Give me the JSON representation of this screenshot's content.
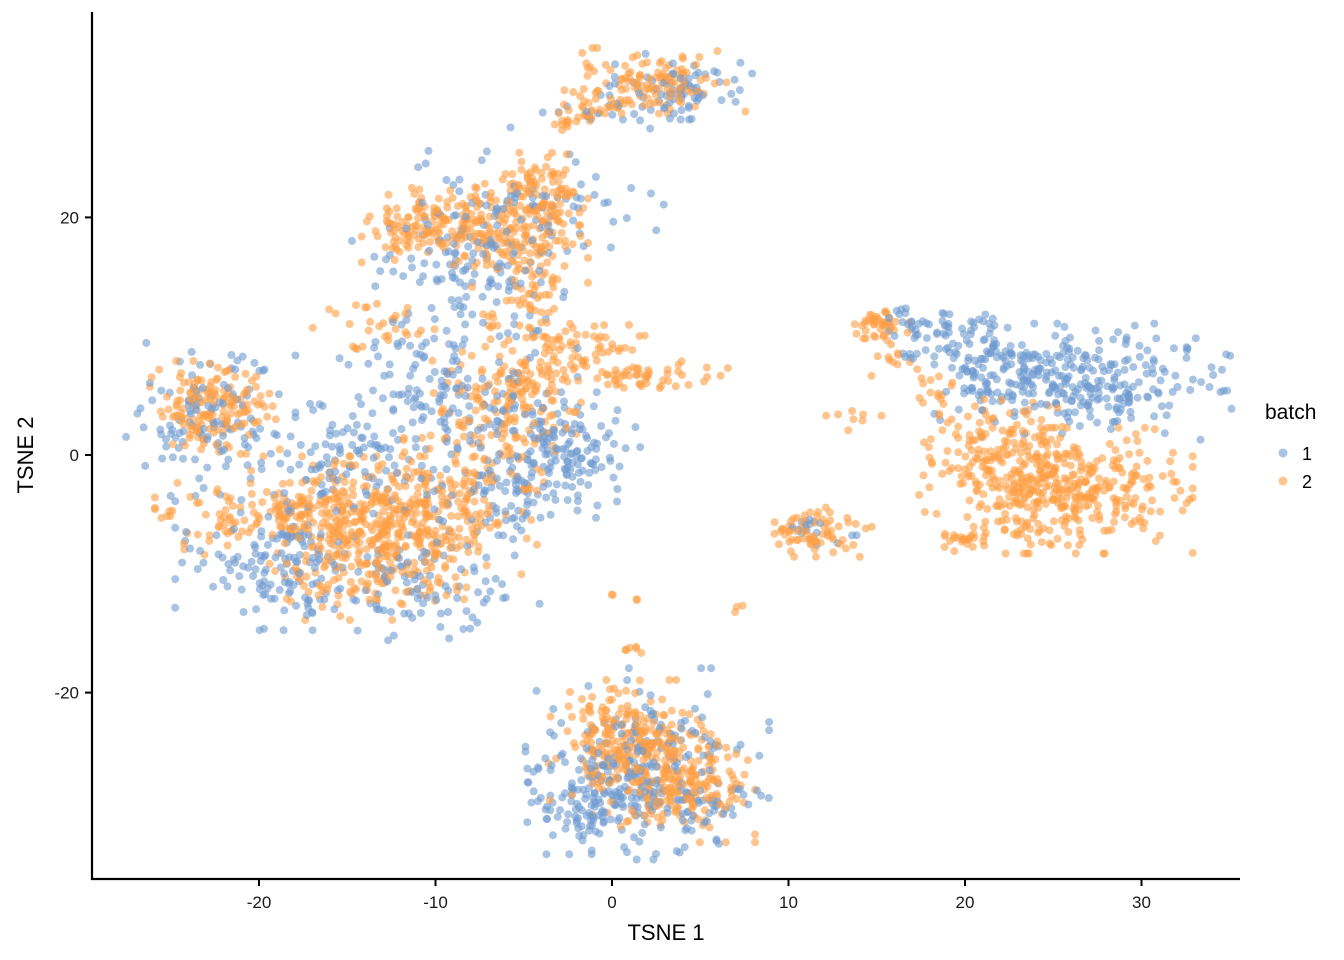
{
  "chart_data": {
    "type": "scatter",
    "title": "",
    "xlabel": "TSNE 1",
    "ylabel": "TSNE 2",
    "xlim": [
      -29,
      36
    ],
    "ylim": [
      -35,
      37
    ],
    "x_ticks": [
      -20,
      -10,
      0,
      10,
      20,
      30
    ],
    "x_tick_labels": [
      "-20",
      "-10",
      "0",
      "10",
      "20",
      "30"
    ],
    "y_ticks": [
      -20,
      0,
      20
    ],
    "y_tick_labels": [
      "-20",
      "0",
      "20"
    ],
    "grid": false,
    "legend": {
      "title": "batch",
      "position": "right",
      "entries": [
        {
          "label": "1",
          "color": "#6F9BD1"
        },
        {
          "label": "2",
          "color": "#FF9F45"
        }
      ]
    },
    "point_alpha": 0.6,
    "point_radius_px": 4,
    "series": [
      {
        "name": "1",
        "color": "#6F9BD1",
        "clusters": [
          {
            "cx": -23,
            "cy": 3,
            "sx": 2.2,
            "sy": 2.8,
            "n": 110
          },
          {
            "cx": -19,
            "cy": -9,
            "sx": 2.5,
            "sy": 2.5,
            "n": 140
          },
          {
            "cx": -16,
            "cy": -1,
            "sx": 2.5,
            "sy": 2.5,
            "n": 90
          },
          {
            "cx": -11,
            "cy": -11,
            "sx": 3.0,
            "sy": 2.0,
            "n": 90
          },
          {
            "cx": -10,
            "cy": 5,
            "sx": 3.5,
            "sy": 3.5,
            "n": 160
          },
          {
            "cx": -8,
            "cy": 15,
            "sx": 3.0,
            "sy": 2.5,
            "n": 110
          },
          {
            "cx": -5,
            "cy": 21,
            "sx": 3.5,
            "sy": 2.0,
            "n": 80
          },
          {
            "cx": -3,
            "cy": 0,
            "sx": 2.0,
            "sy": 2.3,
            "n": 150
          },
          {
            "cx": -6,
            "cy": -4,
            "sx": 2.5,
            "sy": 2.0,
            "n": 60
          },
          {
            "cx": 4,
            "cy": 31,
            "sx": 1.8,
            "sy": 1.2,
            "n": 70
          },
          {
            "cx": 0,
            "cy": 29,
            "sx": 2.5,
            "sy": 1.0,
            "n": 20
          },
          {
            "cx": 19,
            "cy": 10,
            "sx": 1.8,
            "sy": 1.2,
            "n": 80
          },
          {
            "cx": 27,
            "cy": 6,
            "sx": 3.8,
            "sy": 2.2,
            "n": 260
          },
          {
            "cx": 23,
            "cy": 7,
            "sx": 2.0,
            "sy": 1.5,
            "n": 80
          },
          {
            "cx": 11.5,
            "cy": -6.5,
            "sx": 1.5,
            "sy": 0.8,
            "n": 15
          },
          {
            "cx": -1,
            "cy": -29,
            "sx": 1.8,
            "sy": 2.0,
            "n": 130
          },
          {
            "cx": 2,
            "cy": -26,
            "sx": 3.0,
            "sy": 3.5,
            "n": 170
          },
          {
            "cx": 5,
            "cy": -30,
            "sx": 1.5,
            "sy": 1.5,
            "n": 40
          }
        ]
      },
      {
        "name": "2",
        "color": "#FF9F45",
        "clusters": [
          {
            "cx": -22.5,
            "cy": 4,
            "sx": 1.6,
            "sy": 1.7,
            "n": 160
          },
          {
            "cx": -19,
            "cy": -5,
            "sx": 3.0,
            "sy": 1.6,
            "n": 150
          },
          {
            "cx": -14,
            "cy": -7,
            "sx": 2.5,
            "sy": 3.0,
            "n": 300
          },
          {
            "cx": -10,
            "cy": -5,
            "sx": 2.5,
            "sy": 2.8,
            "n": 220
          },
          {
            "cx": -6,
            "cy": 4,
            "sx": 2.0,
            "sy": 3.0,
            "n": 200
          },
          {
            "cx": -10.5,
            "cy": 19.5,
            "sx": 1.6,
            "sy": 1.6,
            "n": 130
          },
          {
            "cx": -5.5,
            "cy": 18.5,
            "sx": 1.8,
            "sy": 2.3,
            "n": 180
          },
          {
            "cx": -4,
            "cy": 22,
            "sx": 1.0,
            "sy": 1.5,
            "n": 80
          },
          {
            "cx": -5,
            "cy": 12,
            "sx": 1.0,
            "sy": 2.0,
            "n": 40
          },
          {
            "cx": -13.5,
            "cy": 11,
            "sx": 1.5,
            "sy": 1.0,
            "n": 30
          },
          {
            "cx": -1.5,
            "cy": 9,
            "sx": 1.8,
            "sy": 1.3,
            "n": 60
          },
          {
            "cx": 1.5,
            "cy": 6.5,
            "sx": 2.2,
            "sy": 0.6,
            "n": 50
          },
          {
            "cx": 2.5,
            "cy": 31.5,
            "sx": 2.2,
            "sy": 1.2,
            "n": 110
          },
          {
            "cx": -0.5,
            "cy": 29.5,
            "sx": 1.3,
            "sy": 0.8,
            "n": 30
          },
          {
            "cx": -2.5,
            "cy": 28.5,
            "sx": 0.8,
            "sy": 0.5,
            "n": 15
          },
          {
            "cx": 15,
            "cy": 11,
            "sx": 0.8,
            "sy": 0.7,
            "n": 40
          },
          {
            "cx": 15.5,
            "cy": 8.5,
            "sx": 0.6,
            "sy": 1.0,
            "n": 12
          },
          {
            "cx": 13.5,
            "cy": 3,
            "sx": 1.0,
            "sy": 0.4,
            "n": 8
          },
          {
            "cx": 11.5,
            "cy": -6.5,
            "sx": 1.4,
            "sy": 0.9,
            "n": 70
          },
          {
            "cx": 22,
            "cy": -0.5,
            "sx": 2.0,
            "sy": 2.5,
            "n": 170
          },
          {
            "cx": 26,
            "cy": -3,
            "sx": 3.0,
            "sy": 2.3,
            "n": 330
          },
          {
            "cx": 20,
            "cy": -7,
            "sx": 0.8,
            "sy": 0.5,
            "n": 25
          },
          {
            "cx": 18.5,
            "cy": 5,
            "sx": 0.6,
            "sy": 1.0,
            "n": 15
          },
          {
            "cx": 1,
            "cy": -24,
            "sx": 2.0,
            "sy": 2.2,
            "n": 230
          },
          {
            "cx": 3.5,
            "cy": -28,
            "sx": 2.0,
            "sy": 2.0,
            "n": 200
          },
          {
            "cx": 1,
            "cy": -16.5,
            "sx": 0.5,
            "sy": 0.2,
            "n": 6
          },
          {
            "cx": 7,
            "cy": -13,
            "sx": 0.2,
            "sy": 0.2,
            "n": 3
          },
          {
            "cx": 0,
            "cy": -11.7,
            "sx": 0.2,
            "sy": 0.1,
            "n": 2
          },
          {
            "cx": 1.2,
            "cy": -12.2,
            "sx": 0.2,
            "sy": 0.1,
            "n": 2
          }
        ]
      }
    ]
  }
}
